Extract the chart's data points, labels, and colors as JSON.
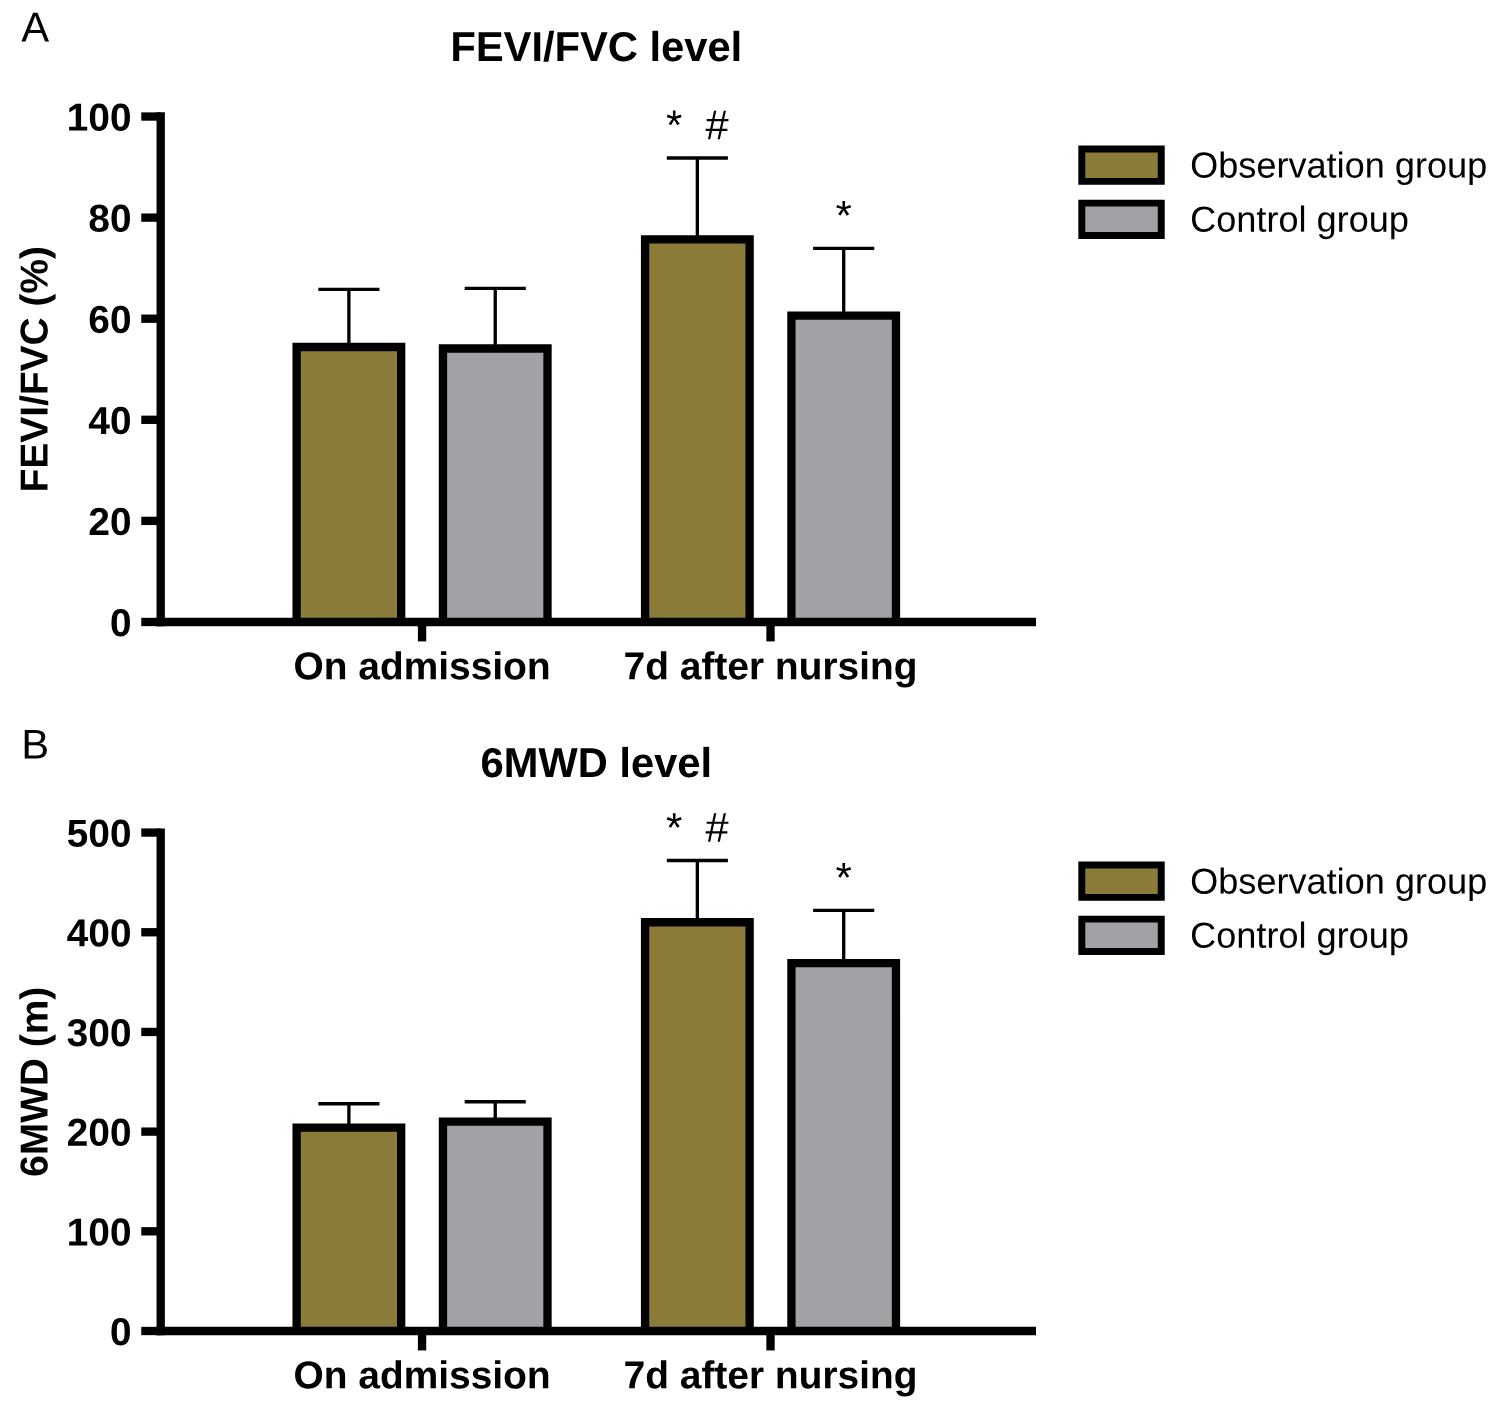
{
  "chart_data": [
    {
      "type": "bar",
      "title": "FEVI/FVC level",
      "ylabel": "FEVI/FVC (%)",
      "categories": [
        "On admission",
        "7d after nursing"
      ],
      "series": [
        {
          "name": "Observation group",
          "color": "#8b7b38",
          "values": [
            54.4,
            75.7
          ],
          "errors": [
            [
              54.4,
              65.8
            ],
            [
              75.7,
              91.8
            ]
          ]
        },
        {
          "name": "Control group",
          "color": "#a2a1a6",
          "values": [
            54.1,
            60.6
          ],
          "errors": [
            [
              54.1,
              66
            ],
            [
              60.6,
              73.9
            ]
          ]
        }
      ],
      "ylim": [
        0,
        100
      ],
      "yticks": [
        0,
        20,
        40,
        60,
        80,
        100
      ],
      "legend": "top right",
      "grid": false,
      "annotations": [
        "A",
        "*  #",
        "*"
      ]
    },
    {
      "type": "bar",
      "title": "6MWD level",
      "ylabel": "6MWD (m)",
      "categories": [
        "On admission",
        "7d after nursing"
      ],
      "series": [
        {
          "name": "Observation group",
          "color": "#8b7b38",
          "values": [
            204,
            410
          ],
          "errors": [
            [
              204,
              228
            ],
            [
              410,
              472
            ]
          ]
        },
        {
          "name": "Control group",
          "color": "#a2a1a6",
          "values": [
            210,
            369
          ],
          "errors": [
            [
              210,
              230
            ],
            [
              369,
              422
            ]
          ]
        }
      ],
      "ylim": [
        0,
        500
      ],
      "yticks": [
        0,
        100,
        200,
        300,
        400,
        500
      ],
      "legend": "top right",
      "grid": false,
      "annotations": [
        "B",
        "*  #",
        "*"
      ]
    }
  ]
}
